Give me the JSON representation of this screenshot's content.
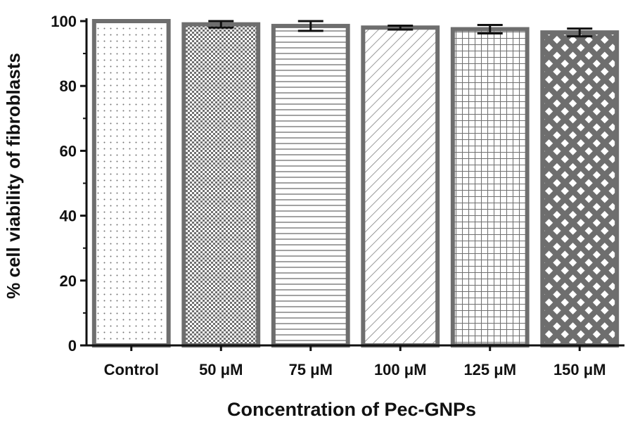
{
  "chart_data": {
    "type": "bar",
    "title": "",
    "xlabel": "Concentration of Pec-GNPs",
    "ylabel": "% cell viability of fibroblasts",
    "categories": [
      "Control",
      "50 μM",
      "75 μM",
      "100 μM",
      "125 μM",
      "150 μM"
    ],
    "values": [
      100,
      99,
      98.5,
      98,
      97.5,
      96.5
    ],
    "errors": [
      0,
      1.0,
      1.5,
      0.6,
      1.3,
      1.2
    ],
    "fill_patterns": [
      "dots",
      "checker",
      "horizontal-lines",
      "diagonal-lines",
      "grid",
      "diamond-lattice"
    ],
    "ylim": [
      0,
      100
    ],
    "yticks": [
      0,
      20,
      40,
      60,
      80,
      100
    ],
    "grid": false,
    "legend": "none",
    "colors": {
      "bar_border": "#6e6e6e",
      "pattern": "#707070",
      "axis": "#111111",
      "error_bar": "#111111"
    }
  }
}
